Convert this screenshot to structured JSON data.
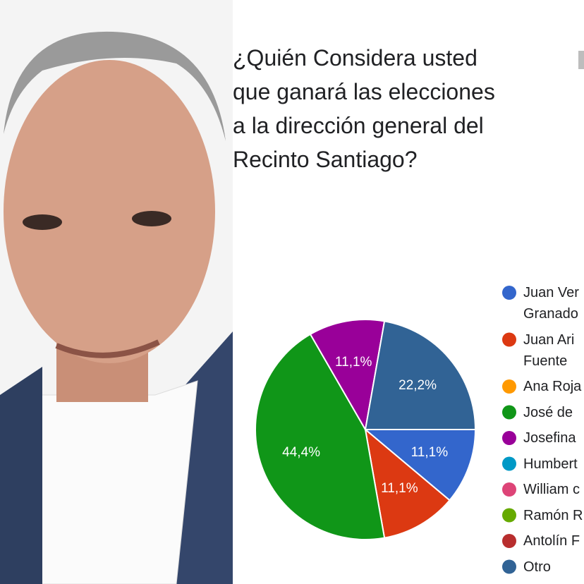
{
  "chart_data": {
    "type": "pie",
    "title": "¿Quién Considera usted\nque ganará las elecciones\na la dirección general del\nRecinto Santiago?",
    "categories": [
      "Juan Ver\nGranado",
      "Juan Ari\nFuente",
      "Ana Roja",
      "José de",
      "Josefina",
      "Humbert",
      "William c",
      "Ramón R",
      "Antolín F",
      "Otro"
    ],
    "values": [
      11.1,
      11.1,
      0,
      44.4,
      11.1,
      0,
      0,
      0,
      0,
      22.2
    ],
    "value_labels": [
      "11,1%",
      "11,1%",
      null,
      "44,4%",
      "11,1%",
      null,
      null,
      null,
      null,
      "22,2%"
    ],
    "colors": [
      "#3366cc",
      "#dc3912",
      "#ff9900",
      "#109618",
      "#990099",
      "#0099c6",
      "#dd4477",
      "#66aa00",
      "#b82e2e",
      "#316395"
    ]
  }
}
